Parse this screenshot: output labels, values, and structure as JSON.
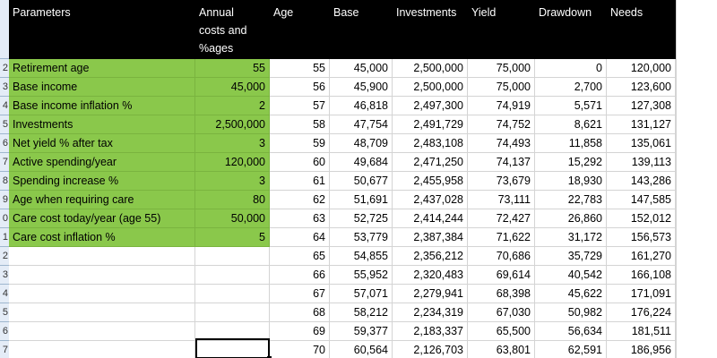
{
  "headers": {
    "parameters": "Parameters",
    "annual_line1": "Annual",
    "annual_line2": "costs and",
    "annual_line3": "%ages",
    "age": "Age",
    "base": "Base",
    "investments": "Investments",
    "yield": "Yield",
    "drawdown": "Drawdown",
    "needs": "Needs"
  },
  "row_numbers": [
    "2",
    "3",
    "4",
    "5",
    "6",
    "7",
    "8",
    "9",
    "0",
    "1",
    "2",
    "3",
    "4",
    "5",
    "6",
    "7"
  ],
  "params": [
    {
      "label": "Retirement age",
      "value": "55"
    },
    {
      "label": "Base income",
      "value": "45,000"
    },
    {
      "label": "Base income inflation  %",
      "value": "2"
    },
    {
      "label": "Investments",
      "value": "2,500,000"
    },
    {
      "label": "Net yield % after tax",
      "value": "3"
    },
    {
      "label": "Active spending/year",
      "value": "120,000"
    },
    {
      "label": "Spending increase %",
      "value": "3"
    },
    {
      "label": "Age when requiring care",
      "value": "80"
    },
    {
      "label": "Care cost today/year (age 55)",
      "value": "50,000"
    },
    {
      "label": "Care cost inflation %",
      "value": "5"
    }
  ],
  "table_rows": [
    {
      "age": "55",
      "base": "45,000",
      "investments": "2,500,000",
      "yield": "75,000",
      "drawdown": "0",
      "needs": "120,000"
    },
    {
      "age": "56",
      "base": "45,900",
      "investments": "2,500,000",
      "yield": "75,000",
      "drawdown": "2,700",
      "needs": "123,600"
    },
    {
      "age": "57",
      "base": "46,818",
      "investments": "2,497,300",
      "yield": "74,919",
      "drawdown": "5,571",
      "needs": "127,308"
    },
    {
      "age": "58",
      "base": "47,754",
      "investments": "2,491,729",
      "yield": "74,752",
      "drawdown": "8,621",
      "needs": "131,127"
    },
    {
      "age": "59",
      "base": "48,709",
      "investments": "2,483,108",
      "yield": "74,493",
      "drawdown": "11,858",
      "needs": "135,061"
    },
    {
      "age": "60",
      "base": "49,684",
      "investments": "2,471,250",
      "yield": "74,137",
      "drawdown": "15,292",
      "needs": "139,113"
    },
    {
      "age": "61",
      "base": "50,677",
      "investments": "2,455,958",
      "yield": "73,679",
      "drawdown": "18,930",
      "needs": "143,286"
    },
    {
      "age": "62",
      "base": "51,691",
      "investments": "2,437,028",
      "yield": "73,111",
      "drawdown": "22,783",
      "needs": "147,585"
    },
    {
      "age": "63",
      "base": "52,725",
      "investments": "2,414,244",
      "yield": "72,427",
      "drawdown": "26,860",
      "needs": "152,012"
    },
    {
      "age": "64",
      "base": "53,779",
      "investments": "2,387,384",
      "yield": "71,622",
      "drawdown": "31,172",
      "needs": "156,573"
    },
    {
      "age": "65",
      "base": "54,855",
      "investments": "2,356,212",
      "yield": "70,686",
      "drawdown": "35,729",
      "needs": "161,270"
    },
    {
      "age": "66",
      "base": "55,952",
      "investments": "2,320,483",
      "yield": "69,614",
      "drawdown": "40,542",
      "needs": "166,108"
    },
    {
      "age": "67",
      "base": "57,071",
      "investments": "2,279,941",
      "yield": "68,398",
      "drawdown": "45,622",
      "needs": "171,091"
    },
    {
      "age": "68",
      "base": "58,212",
      "investments": "2,234,319",
      "yield": "67,030",
      "drawdown": "50,982",
      "needs": "176,224"
    },
    {
      "age": "69",
      "base": "59,377",
      "investments": "2,183,337",
      "yield": "65,500",
      "drawdown": "56,634",
      "needs": "181,511"
    },
    {
      "age": "70",
      "base": "60,564",
      "investments": "2,126,703",
      "yield": "63,801",
      "drawdown": "62,591",
      "needs": "186,956"
    }
  ],
  "colors": {
    "header_bg": "#000000",
    "param_green": "#8ac84b",
    "row_header": "#e4ecf7"
  }
}
